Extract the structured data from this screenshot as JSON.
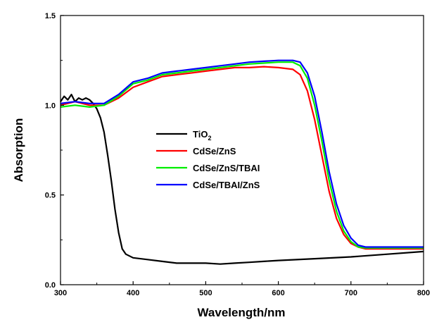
{
  "chart_data": {
    "type": "line",
    "xlabel": "Wavelength/nm",
    "ylabel": "Absorption",
    "xlim": [
      300,
      800
    ],
    "ylim": [
      0.0,
      1.5
    ],
    "xticks": [
      300,
      400,
      500,
      600,
      700,
      800
    ],
    "xtick_labels": [
      "300",
      "400",
      "500",
      "600",
      "700",
      "800"
    ],
    "yticks": [
      0.0,
      0.5,
      1.0,
      1.5
    ],
    "ytick_labels": [
      "0.0",
      "0.5",
      "1.0",
      "1.5"
    ],
    "legend_position": "center",
    "series": [
      {
        "name": "TiO2",
        "legend_main": "TiO",
        "legend_sub": "2",
        "color": "#000000",
        "x": [
          300,
          305,
          310,
          315,
          320,
          325,
          330,
          335,
          340,
          345,
          350,
          355,
          360,
          365,
          370,
          375,
          380,
          385,
          390,
          400,
          420,
          440,
          460,
          480,
          500,
          520,
          540,
          560,
          580,
          600,
          650,
          700,
          750,
          800
        ],
        "y": [
          1.02,
          1.05,
          1.03,
          1.06,
          1.02,
          1.04,
          1.03,
          1.04,
          1.03,
          1.01,
          0.98,
          0.93,
          0.85,
          0.72,
          0.58,
          0.42,
          0.29,
          0.2,
          0.17,
          0.15,
          0.14,
          0.13,
          0.12,
          0.12,
          0.12,
          0.115,
          0.12,
          0.125,
          0.13,
          0.135,
          0.145,
          0.155,
          0.17,
          0.185
        ]
      },
      {
        "name": "CdSe/ZnS",
        "legend_main": "CdSe/ZnS",
        "legend_sub": "",
        "color": "#ff0000",
        "x": [
          300,
          320,
          340,
          360,
          380,
          400,
          420,
          440,
          460,
          480,
          500,
          520,
          540,
          560,
          580,
          600,
          620,
          630,
          640,
          650,
          660,
          670,
          680,
          690,
          700,
          710,
          720,
          740,
          760,
          780,
          800
        ],
        "y": [
          1.0,
          1.02,
          1.0,
          1.0,
          1.04,
          1.1,
          1.13,
          1.16,
          1.17,
          1.18,
          1.19,
          1.2,
          1.21,
          1.21,
          1.215,
          1.21,
          1.2,
          1.17,
          1.08,
          0.92,
          0.72,
          0.52,
          0.37,
          0.28,
          0.23,
          0.21,
          0.2,
          0.2,
          0.2,
          0.2,
          0.2
        ]
      },
      {
        "name": "CdSe/ZnS/TBAI",
        "legend_main": "CdSe/ZnS/TBAI",
        "legend_sub": "",
        "color": "#00ee00",
        "x": [
          300,
          320,
          340,
          360,
          380,
          400,
          420,
          440,
          460,
          480,
          500,
          520,
          540,
          560,
          580,
          600,
          620,
          630,
          640,
          650,
          660,
          670,
          680,
          690,
          700,
          710,
          720,
          740,
          760,
          780,
          800
        ],
        "y": [
          0.99,
          1.0,
          0.99,
          1.0,
          1.05,
          1.12,
          1.14,
          1.17,
          1.18,
          1.19,
          1.2,
          1.21,
          1.22,
          1.23,
          1.235,
          1.24,
          1.24,
          1.22,
          1.15,
          1.0,
          0.8,
          0.58,
          0.41,
          0.3,
          0.24,
          0.21,
          0.205,
          0.205,
          0.205,
          0.205,
          0.205
        ]
      },
      {
        "name": "CdSe/TBAI/ZnS",
        "legend_main": "CdSe/TBAI/ZnS",
        "legend_sub": "",
        "color": "#0000ff",
        "x": [
          300,
          320,
          340,
          360,
          380,
          400,
          420,
          440,
          460,
          480,
          500,
          520,
          540,
          560,
          580,
          600,
          620,
          630,
          640,
          650,
          660,
          670,
          680,
          690,
          700,
          710,
          720,
          740,
          760,
          780,
          800
        ],
        "y": [
          1.01,
          1.02,
          1.01,
          1.01,
          1.06,
          1.13,
          1.15,
          1.18,
          1.19,
          1.2,
          1.21,
          1.22,
          1.23,
          1.24,
          1.245,
          1.25,
          1.25,
          1.24,
          1.18,
          1.05,
          0.85,
          0.63,
          0.45,
          0.33,
          0.26,
          0.22,
          0.21,
          0.21,
          0.21,
          0.21,
          0.21
        ]
      }
    ]
  }
}
